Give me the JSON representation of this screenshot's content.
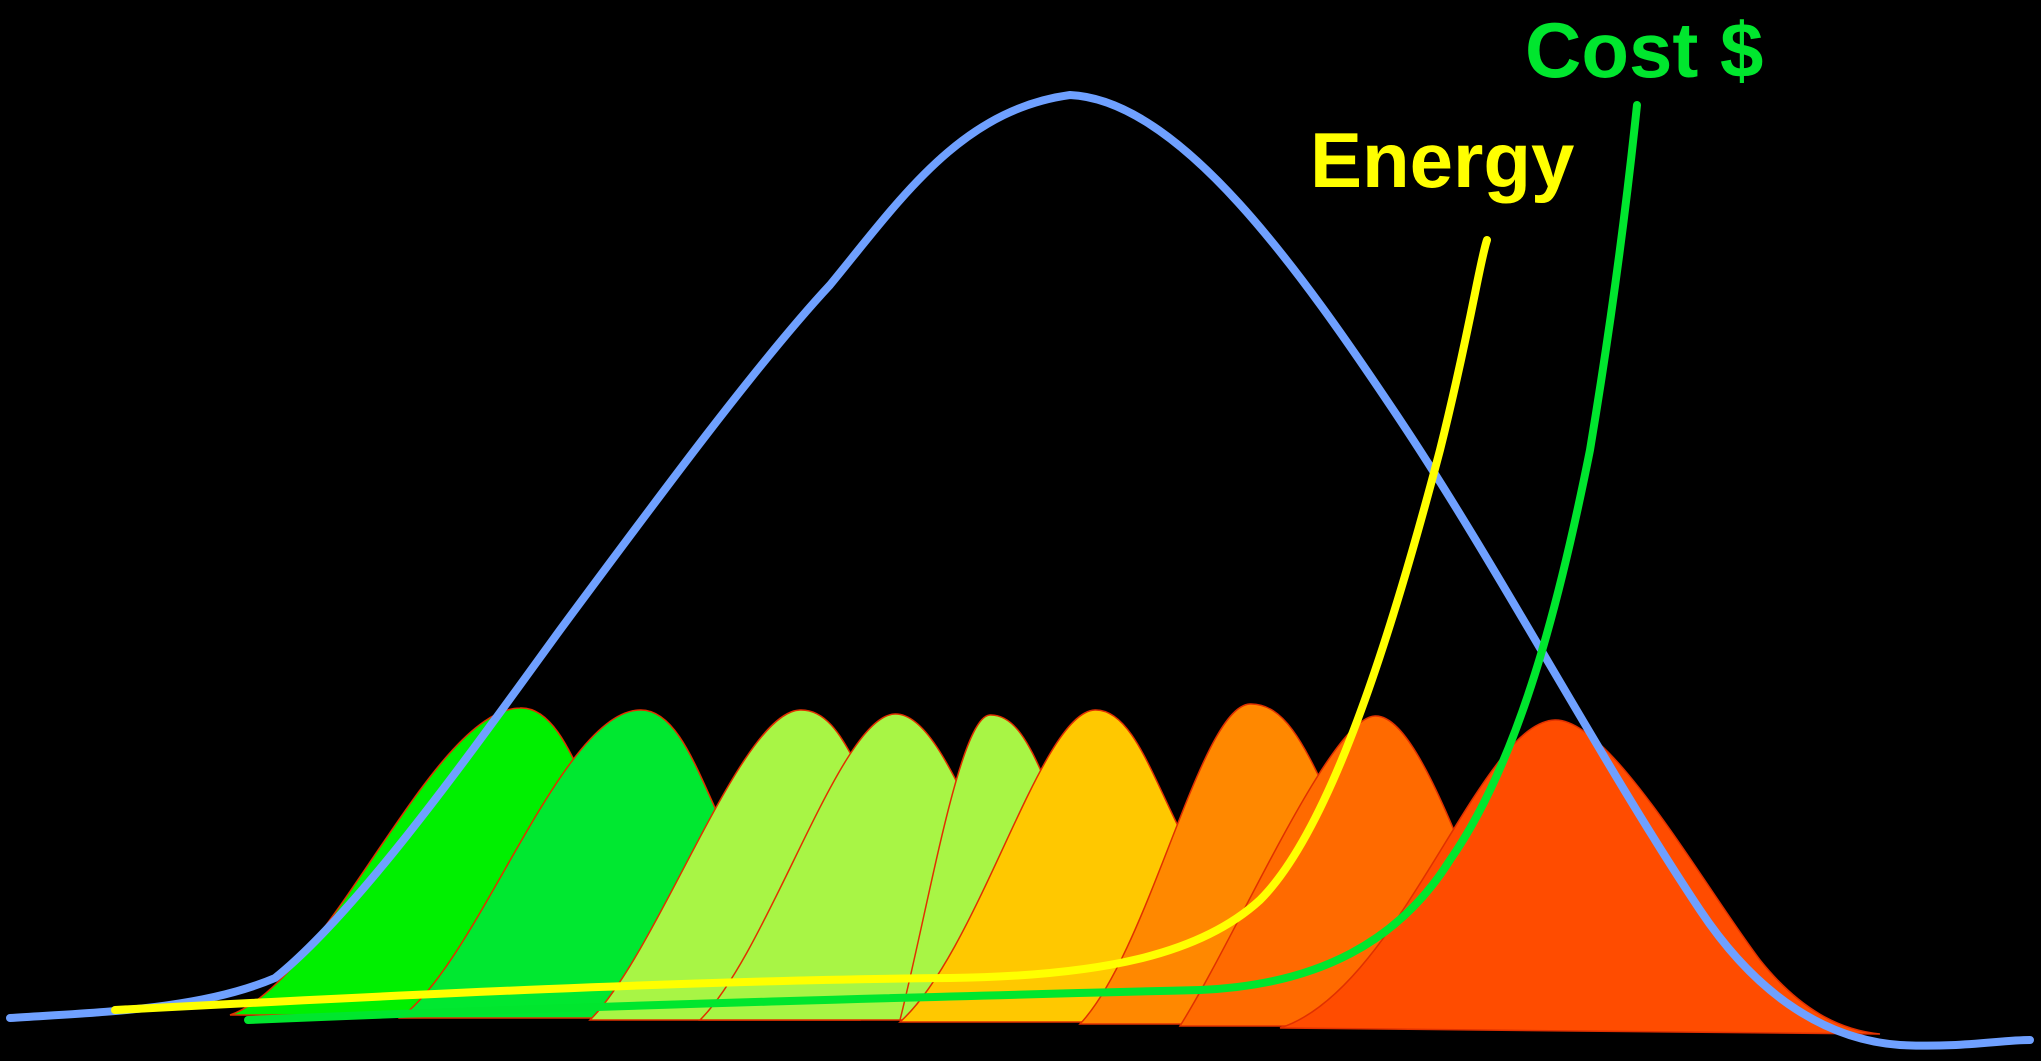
{
  "labels": {
    "energy": "Energy",
    "cost": "Cost $"
  },
  "colors": {
    "background": "#000000",
    "distribution": "#6fa0ff",
    "energy": "#ffff00",
    "cost": "#00e62e",
    "bin_outline": "#e03000",
    "bins": [
      "#00f000",
      "#00e830",
      "#a8f545",
      "#a8f545",
      "#a8f545",
      "#ffc800",
      "#ff8800",
      "#ff6a00",
      "#ff4c00"
    ]
  },
  "bin_count": 9
}
